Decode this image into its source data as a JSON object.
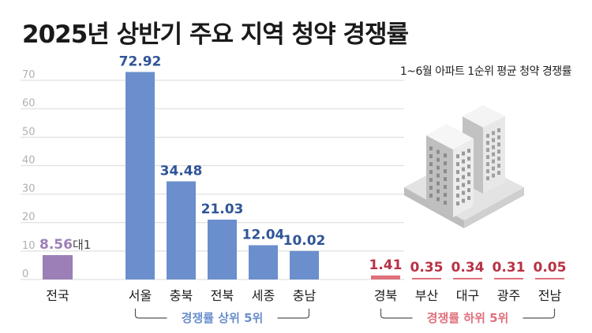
{
  "title": "2025년 상반기 주요 지역 청약 경쟁률",
  "subtitle": "1~6월 아파트 1순위 평균 청약 경쟁률",
  "colors": {
    "national": "#9b7fb6",
    "top": "#6a8fcc",
    "bottom": "#e0707c",
    "top_label": "#2f5597",
    "bottom_label": "#b83245",
    "grid": "#d9d9d9",
    "axis_text": "#b0b0b0"
  },
  "chart_data": {
    "type": "bar",
    "ylim": [
      0,
      75
    ],
    "yticks": [
      0,
      10,
      20,
      30,
      40,
      50,
      60,
      70
    ],
    "grid": true,
    "groups": [
      {
        "key": "national",
        "name": "",
        "categories": [
          "전국"
        ],
        "values": [
          8.56
        ],
        "labels": [
          "8.56"
        ],
        "suffix": "대1"
      },
      {
        "key": "top",
        "name": "경쟁률 상위 5위",
        "categories": [
          "서울",
          "충북",
          "전북",
          "세종",
          "충남"
        ],
        "values": [
          72.92,
          34.48,
          21.03,
          12.04,
          10.02
        ],
        "labels": [
          "72.92",
          "34.48",
          "21.03",
          "12.04",
          "10.02"
        ]
      },
      {
        "key": "bottom",
        "name": "경쟁률 하위 5위",
        "categories": [
          "경북",
          "부산",
          "대구",
          "광주",
          "전남"
        ],
        "values": [
          1.41,
          0.35,
          0.34,
          0.31,
          0.05
        ],
        "labels": [
          "1.41",
          "0.35",
          "0.34",
          "0.31",
          "0.05"
        ]
      }
    ]
  }
}
